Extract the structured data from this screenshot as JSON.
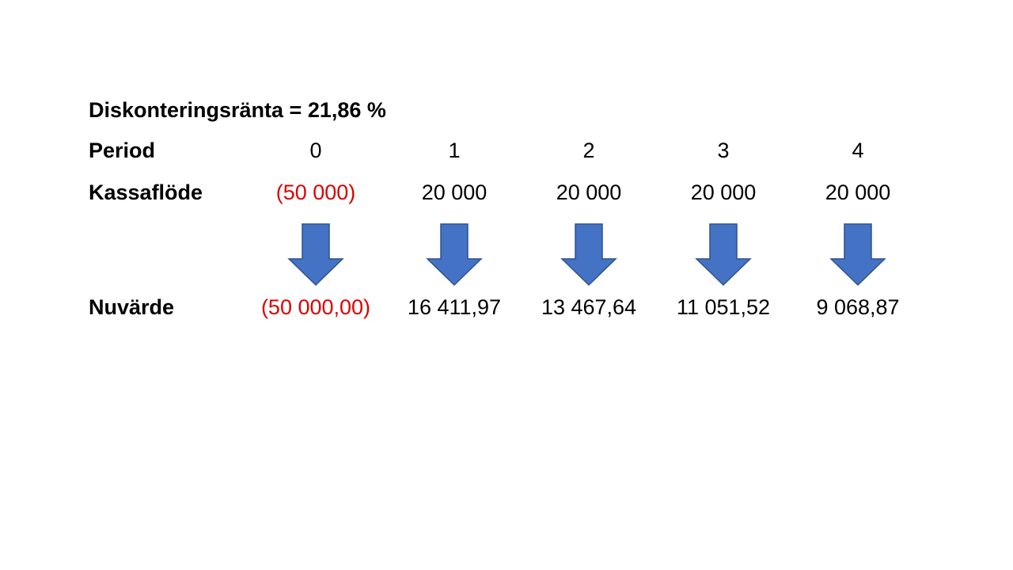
{
  "title": "Diskonteringsränta = 21,86 %",
  "rows": [
    {
      "label": "Period",
      "cells": [
        "0",
        "1",
        "2",
        "3",
        "4"
      ]
    },
    {
      "label": "Kassaflöde",
      "cells": [
        "(50 000)",
        "20 000",
        "20 000",
        "20 000",
        "20 000"
      ]
    },
    {
      "label": "Nuvärde",
      "cells": [
        "(50 000,00)",
        "16 411,97",
        "13 467,64",
        "11 051,52",
        "9 068,87"
      ]
    }
  ]
}
